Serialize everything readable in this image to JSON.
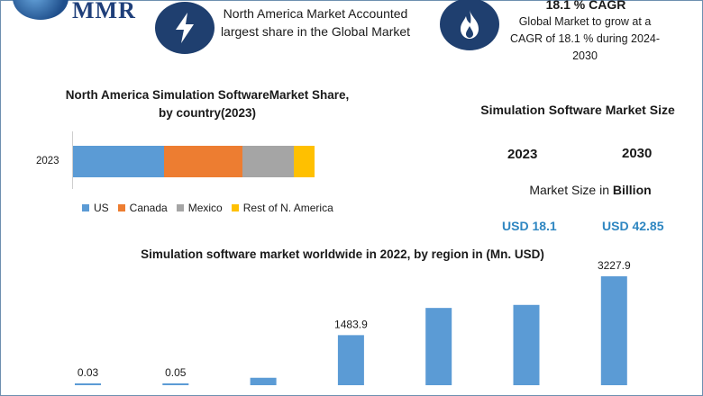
{
  "brand": {
    "logo_text": "MMR"
  },
  "header": {
    "na_market_text": "North America Market Accounted largest share in the Global Market",
    "cagr_title": "18.1 % CAGR",
    "cagr_text": "Global Market to grow at a CAGR of 18.1 % during 2024-2030"
  },
  "icons": {
    "left": "lightning-bolt-icon",
    "right": "flame-icon"
  },
  "market_size": {
    "title": "Simulation Software Market Size",
    "year_a": "2023",
    "year_b": "2030",
    "unit_prefix": "Market Size in ",
    "unit_bold": "Billion",
    "value_a": "USD 18.1",
    "value_b": "USD 42.85",
    "value_color": "#2e86c1"
  },
  "chart_data": [
    {
      "type": "bar",
      "stacked": true,
      "orientation": "horizontal",
      "title": "North America Simulation SoftwareMarket Share, by country(2023)",
      "categories": [
        "2023"
      ],
      "series": [
        {
          "name": "US",
          "values": [
            37.5
          ],
          "color": "#5b9bd5"
        },
        {
          "name": "Canada",
          "values": [
            32.5
          ],
          "color": "#ed7d31"
        },
        {
          "name": "Mexico",
          "values": [
            21.5
          ],
          "color": "#a5a5a5"
        },
        {
          "name": "Rest of N. America",
          "values": [
            8.5
          ],
          "color": "#ffc000"
        }
      ],
      "legend_position": "bottom"
    },
    {
      "type": "bar",
      "title": "Simulation software market worldwide in 2022, by region in (Mn. USD)",
      "categories": [
        "",
        "",
        "",
        "",
        "",
        "",
        ""
      ],
      "values": [
        0.03,
        0.05,
        220,
        1483.9,
        2290,
        2380,
        3227.9
      ],
      "data_labels": [
        "0.03",
        "0.05",
        "",
        "1483.9",
        "",
        "",
        "3227.9"
      ],
      "bar_color": "#5b9bd5",
      "ylim": [
        0,
        3227.9
      ]
    }
  ]
}
